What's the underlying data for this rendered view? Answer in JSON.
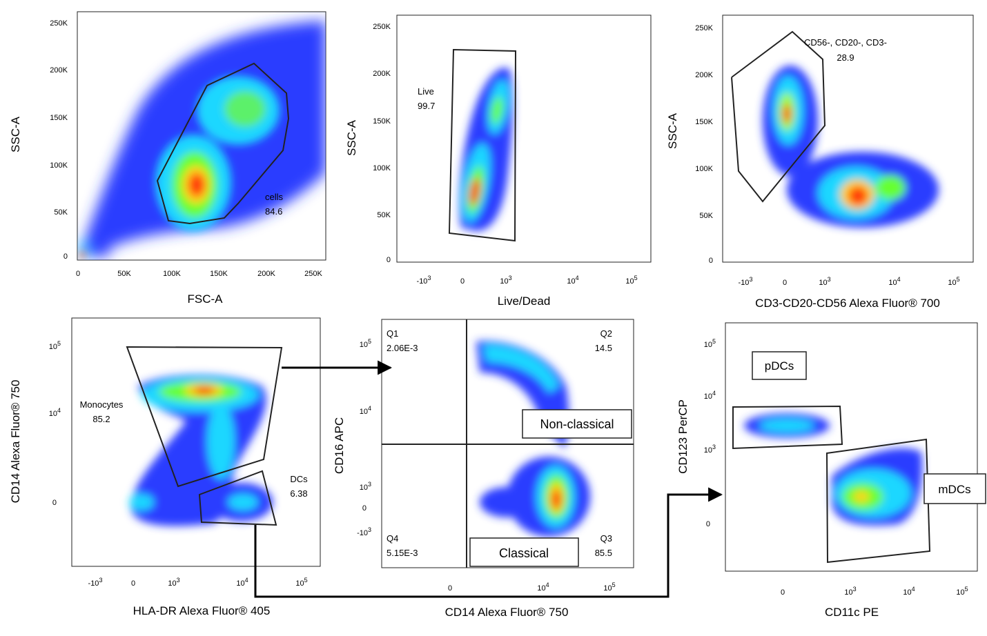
{
  "chart_data": [
    {
      "type": "scatter",
      "xlabel": "FSC-A",
      "ylabel": "SSC-A",
      "x_ticks": [
        "0",
        "50K",
        "100K",
        "150K",
        "200K",
        "250K"
      ],
      "y_ticks": [
        "0",
        "50K",
        "100K",
        "150K",
        "200K",
        "250K"
      ],
      "gates": [
        {
          "label": "cells",
          "value": "84.6"
        }
      ],
      "populations": [
        {
          "x": 128000,
          "y": 75000
        },
        {
          "x": 180000,
          "y": 155000
        },
        {
          "x": 5000,
          "y": 3000
        }
      ]
    },
    {
      "type": "scatter",
      "xlabel": "Live/Dead",
      "ylabel": "SSC-A",
      "x_ticks": [
        "-10^3",
        "0",
        "10^3",
        "10^4",
        "10^5"
      ],
      "y_ticks": [
        "0",
        "50K",
        "100K",
        "150K",
        "200K",
        "250K"
      ],
      "gates": [
        {
          "label": "Live",
          "value": "99.7"
        }
      ]
    },
    {
      "type": "scatter",
      "xlabel": "CD3-CD20-CD56 Alexa Fluor® 700",
      "ylabel": "SSC-A",
      "x_ticks": [
        "-10^3",
        "0",
        "10^3",
        "10^4",
        "10^5"
      ],
      "y_ticks": [
        "0",
        "50K",
        "100K",
        "150K",
        "200K",
        "250K"
      ],
      "gates": [
        {
          "label": "CD56-, CD20-, CD3-",
          "value": "28.9"
        }
      ]
    },
    {
      "type": "scatter",
      "xlabel": "HLA-DR Alexa Fluor® 405",
      "ylabel": "CD14 Alexa Fluor® 750",
      "x_ticks": [
        "-10^3",
        "0",
        "10^3",
        "10^4",
        "10^5"
      ],
      "y_ticks": [
        "0",
        "10^4",
        "10^5"
      ],
      "gates": [
        {
          "label": "Monocytes",
          "value": "85.2"
        },
        {
          "label": "DCs",
          "value": "6.38"
        }
      ]
    },
    {
      "type": "scatter",
      "xlabel": "CD14 Alexa Fluor® 750",
      "ylabel": "CD16 APC",
      "x_ticks": [
        "0",
        "10^4",
        "10^5"
      ],
      "y_ticks": [
        "-10^3",
        "0",
        "10^3",
        "10^4",
        "10^5"
      ],
      "quadrants": [
        {
          "label": "Q1",
          "value": "2.06E-3"
        },
        {
          "label": "Q2",
          "value": "14.5"
        },
        {
          "label": "Q3",
          "value": "85.5"
        },
        {
          "label": "Q4",
          "value": "5.15E-3"
        }
      ],
      "boxes": [
        "Non-classical",
        "Classical"
      ]
    },
    {
      "type": "scatter",
      "xlabel": "CD11c PE",
      "ylabel": "CD123 PerCP",
      "x_ticks": [
        "0",
        "10^3",
        "10^4",
        "10^5"
      ],
      "y_ticks": [
        "0",
        "10^3",
        "10^4",
        "10^5"
      ],
      "boxes": [
        "pDCs",
        "mDCs"
      ]
    }
  ]
}
